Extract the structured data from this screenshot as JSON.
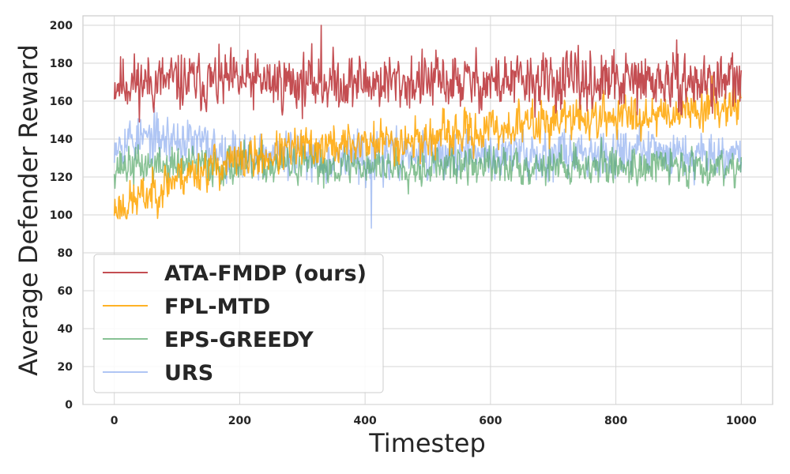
{
  "chart_data": {
    "type": "line",
    "title": "",
    "xlabel": "Timestep",
    "ylabel": "Average Defender Reward",
    "xlim": [
      -50,
      1050
    ],
    "ylim": [
      0,
      205
    ],
    "x_ticks": [
      0,
      200,
      400,
      600,
      800,
      1000
    ],
    "y_ticks": [
      0,
      20,
      40,
      60,
      80,
      100,
      120,
      140,
      160,
      180,
      200
    ],
    "grid": true,
    "legend_position": "lower-left",
    "x_start": 0,
    "x_end": 1000,
    "series": [
      {
        "name": "ATA-FMDP (ours)",
        "color": "#c44e52",
        "opacity": 1.0,
        "profile": [
          [
            0,
            170
          ],
          [
            1000,
            170
          ]
        ],
        "noise": 12,
        "min": 145,
        "max": 200,
        "seed": 11
      },
      {
        "name": "FPL-MTD",
        "color": "#ffa500",
        "opacity": 0.85,
        "profile": [
          [
            0,
            103
          ],
          [
            50,
            110
          ],
          [
            100,
            120
          ],
          [
            150,
            125
          ],
          [
            200,
            128
          ],
          [
            300,
            135
          ],
          [
            400,
            138
          ],
          [
            500,
            140
          ],
          [
            600,
            145
          ],
          [
            700,
            150
          ],
          [
            800,
            152
          ],
          [
            900,
            155
          ],
          [
            1000,
            160
          ]
        ],
        "noise": 9,
        "min": 98,
        "max": 180,
        "seed": 23
      },
      {
        "name": "EPS-GREEDY",
        "color": "#55a868",
        "opacity": 0.7,
        "profile": [
          [
            0,
            126
          ],
          [
            1000,
            126
          ]
        ],
        "noise": 8,
        "min": 104,
        "max": 145,
        "seed": 37
      },
      {
        "name": "URS",
        "color": "#8eaef0",
        "opacity": 0.7,
        "profile": [
          [
            0,
            140
          ],
          [
            100,
            140
          ],
          [
            200,
            132
          ],
          [
            400,
            130
          ],
          [
            600,
            132
          ],
          [
            800,
            134
          ],
          [
            1000,
            133
          ]
        ],
        "noise": 10,
        "min": 93,
        "max": 175,
        "seed": 53
      }
    ]
  }
}
